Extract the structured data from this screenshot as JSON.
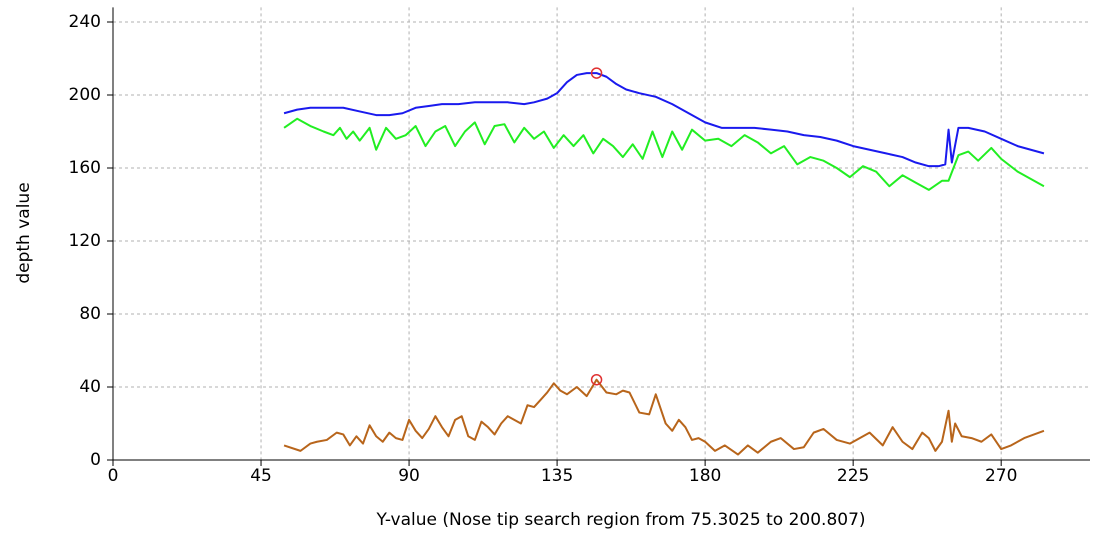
{
  "chart_data": {
    "type": "line",
    "xlabel": "Y-value (Nose tip search region from 75.3025 to 200.807)",
    "ylabel": "depth value",
    "xlim": [
      0,
      297
    ],
    "ylim": [
      0,
      248
    ],
    "xticks": [
      0,
      45,
      90,
      135,
      180,
      225,
      270
    ],
    "yticks": [
      0,
      40,
      80,
      120,
      160,
      200,
      240
    ],
    "grid": true,
    "series": [
      {
        "color": "#1a1aee",
        "x": [
          52,
          56,
          60,
          65,
          70,
          75,
          80,
          84,
          88,
          92,
          96,
          100,
          105,
          110,
          115,
          120,
          125,
          128,
          132,
          135,
          138,
          141,
          144,
          147,
          150,
          153,
          156,
          160,
          165,
          170,
          175,
          180,
          185,
          190,
          195,
          200,
          205,
          210,
          215,
          220,
          225,
          230,
          235,
          240,
          244,
          248,
          251,
          253,
          254,
          255,
          257,
          260,
          265,
          270,
          275,
          283
        ],
        "values": [
          190,
          192,
          193,
          193,
          193,
          191,
          189,
          189,
          190,
          193,
          194,
          195,
          195,
          196,
          196,
          196,
          195,
          196,
          198,
          201,
          207,
          211,
          212,
          212,
          210,
          206,
          203,
          201,
          199,
          195,
          190,
          185,
          182,
          182,
          182,
          181,
          180,
          178,
          177,
          175,
          172,
          170,
          168,
          166,
          163,
          161,
          161,
          162,
          181,
          163,
          182,
          182,
          180,
          176,
          172,
          168
        ]
      },
      {
        "color": "#22ee22",
        "x": [
          52,
          56,
          60,
          64,
          67,
          69,
          71,
          73,
          75,
          78,
          80,
          83,
          86,
          89,
          92,
          95,
          98,
          101,
          104,
          107,
          110,
          113,
          116,
          119,
          122,
          125,
          128,
          131,
          134,
          137,
          140,
          143,
          146,
          149,
          152,
          155,
          158,
          161,
          164,
          167,
          170,
          173,
          176,
          180,
          184,
          188,
          192,
          196,
          200,
          204,
          208,
          212,
          216,
          220,
          224,
          228,
          232,
          236,
          240,
          244,
          248,
          252,
          254,
          257,
          260,
          263,
          267,
          270,
          275,
          283
        ],
        "values": [
          182,
          187,
          183,
          180,
          178,
          182,
          176,
          180,
          175,
          182,
          170,
          182,
          176,
          178,
          183,
          172,
          180,
          183,
          172,
          180,
          185,
          173,
          183,
          184,
          174,
          182,
          176,
          180,
          171,
          178,
          172,
          178,
          168,
          176,
          172,
          166,
          173,
          165,
          180,
          166,
          180,
          170,
          181,
          175,
          176,
          172,
          178,
          174,
          168,
          172,
          162,
          166,
          164,
          160,
          155,
          161,
          158,
          150,
          156,
          152,
          148,
          153,
          153,
          167,
          169,
          164,
          171,
          165,
          158,
          150
        ]
      },
      {
        "color": "#b8651b",
        "x": [
          52,
          57,
          60,
          62,
          65,
          68,
          70,
          72,
          74,
          76,
          78,
          80,
          82,
          84,
          86,
          88,
          90,
          92,
          94,
          96,
          98,
          100,
          102,
          104,
          106,
          108,
          110,
          112,
          114,
          116,
          118,
          120,
          122,
          124,
          126,
          128,
          130,
          132,
          134,
          136,
          138,
          141,
          144,
          147,
          150,
          153,
          155,
          157,
          160,
          163,
          165,
          168,
          170,
          172,
          174,
          176,
          178,
          180,
          183,
          186,
          190,
          193,
          196,
          200,
          203,
          207,
          210,
          213,
          216,
          220,
          224,
          227,
          230,
          234,
          237,
          240,
          243,
          246,
          248,
          250,
          252,
          254,
          255,
          256,
          258,
          261,
          264,
          267,
          270,
          273,
          277,
          283
        ],
        "values": [
          8,
          5,
          9,
          10,
          11,
          15,
          14,
          8,
          13,
          9,
          19,
          13,
          10,
          15,
          12,
          11,
          22,
          16,
          12,
          17,
          24,
          18,
          13,
          22,
          24,
          13,
          11,
          21,
          18,
          14,
          20,
          24,
          22,
          20,
          30,
          29,
          33,
          37,
          42,
          38,
          36,
          40,
          35,
          44,
          37,
          36,
          38,
          37,
          26,
          25,
          36,
          20,
          16,
          22,
          18,
          11,
          12,
          10,
          5,
          8,
          3,
          8,
          4,
          10,
          12,
          6,
          7,
          15,
          17,
          11,
          9,
          12,
          15,
          8,
          18,
          10,
          6,
          15,
          12,
          5,
          10,
          27,
          10,
          20,
          13,
          12,
          10,
          14,
          6,
          8,
          12,
          16
        ]
      }
    ],
    "highlights": {
      "color": "#e03030",
      "x": [
        147,
        147
      ],
      "values": [
        212,
        44
      ]
    }
  }
}
